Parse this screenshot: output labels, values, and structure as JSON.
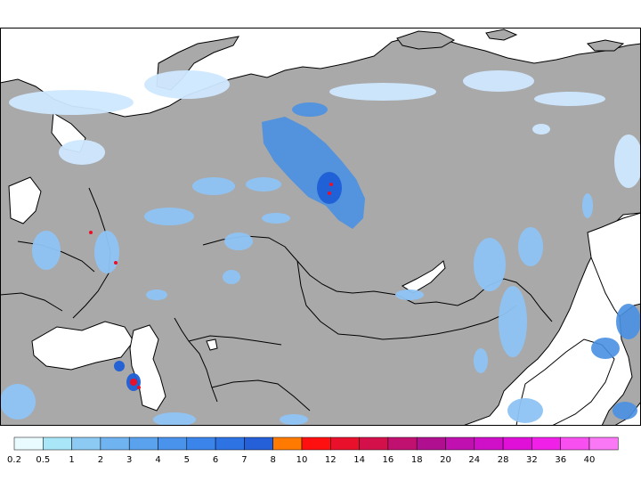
{
  "map": {
    "colors": {
      "land": "#a9a9a9",
      "water": "#ffffff",
      "coast": "#000000"
    },
    "precip_colors": {
      "light": "#cfe8ff",
      "medium": "#8fc4f5",
      "heavy": "#4a90e2",
      "intense": "#1e5fd6",
      "extreme": "#e8102a"
    }
  },
  "legend": {
    "bins": [
      {
        "label": "0.2",
        "color": "#e9fbff"
      },
      {
        "label": "0.5",
        "color": "#a9e6f7"
      },
      {
        "label": "1",
        "color": "#8ccaf4"
      },
      {
        "label": "2",
        "color": "#6fb3f0"
      },
      {
        "label": "3",
        "color": "#5aa2ee"
      },
      {
        "label": "4",
        "color": "#4a93ec"
      },
      {
        "label": "5",
        "color": "#3a84ea"
      },
      {
        "label": "6",
        "color": "#2e73e4"
      },
      {
        "label": "7",
        "color": "#2660d8"
      },
      {
        "label": "8",
        "color": "#ff7a00"
      },
      {
        "label": "10",
        "color": "#ff1010"
      },
      {
        "label": "12",
        "color": "#e8102a"
      },
      {
        "label": "14",
        "color": "#d4104a"
      },
      {
        "label": "16",
        "color": "#c01070"
      },
      {
        "label": "18",
        "color": "#b01090"
      },
      {
        "label": "20",
        "color": "#c010b0"
      },
      {
        "label": "24",
        "color": "#d010c8"
      },
      {
        "label": "28",
        "color": "#e010d8"
      },
      {
        "label": "32",
        "color": "#f020e8"
      },
      {
        "label": "36",
        "color": "#f850f0"
      },
      {
        "label": "40",
        "color": "#fa78f6"
      }
    ]
  }
}
